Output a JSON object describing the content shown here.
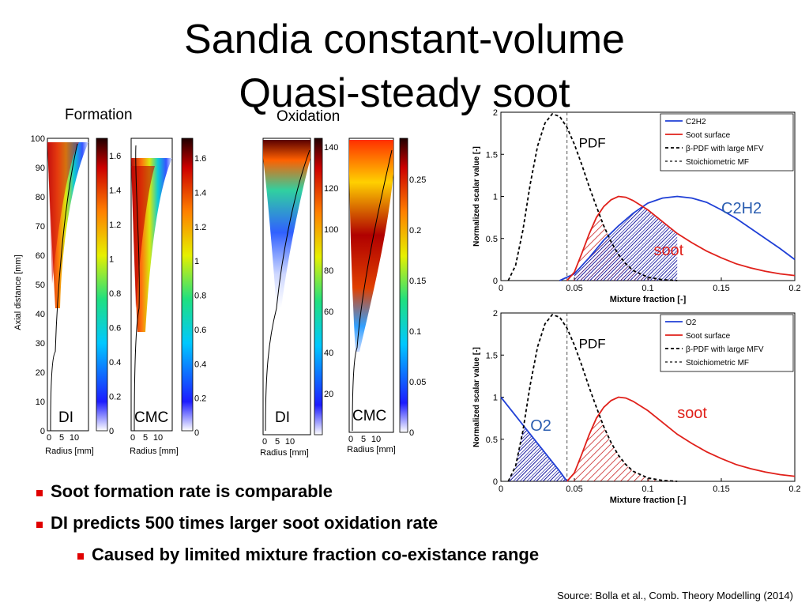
{
  "title": {
    "line1": "Sandia constant-volume",
    "line2": "Quasi-steady soot"
  },
  "section_labels": {
    "formation": "Formation",
    "oxidation": "Oxidation"
  },
  "maps": {
    "ylabel": "Axial distance [mm]",
    "xlabel": "Radius [mm]",
    "y_ticks": [
      "100",
      "90",
      "80",
      "70",
      "60",
      "50",
      "40",
      "30",
      "20",
      "10",
      "0"
    ],
    "x_ticks": [
      "0",
      "5",
      "10"
    ],
    "panels": [
      {
        "label": "DI",
        "cbar_ticks": [
          "1.6",
          "1.4",
          "1.2",
          "1",
          "0.8",
          "0.6",
          "0.4",
          "0.2",
          "0"
        ]
      },
      {
        "label": "CMC",
        "cbar_ticks": [
          "1.6",
          "1.4",
          "1.2",
          "1",
          "0.8",
          "0.6",
          "0.4",
          "0.2",
          "0"
        ]
      },
      {
        "label": "DI",
        "cbar_ticks": [
          "140",
          "120",
          "100",
          "80",
          "60",
          "40",
          "20"
        ]
      },
      {
        "label": "CMC",
        "cbar_ticks": [
          "0.25",
          "0.2",
          "0.15",
          "0.1",
          "0.05",
          "0"
        ]
      }
    ]
  },
  "chart_data": [
    {
      "type": "line",
      "xlabel": "Mixture fraction [-]",
      "ylabel": "Normalized scalar value [-]",
      "xlim": [
        0,
        0.2
      ],
      "ylim": [
        0,
        2
      ],
      "x_ticks": [
        "0",
        "0.05",
        "0.1",
        "0.15",
        "0.2"
      ],
      "y_ticks": [
        "0",
        "0.5",
        "1",
        "1.5",
        "2"
      ],
      "legend_position": "top-right",
      "legend": [
        "C2H2",
        "Soot surface",
        "β-PDF with large MFV",
        "Stoichiometric MF"
      ],
      "annotations": {
        "pdf": "PDF",
        "species": "C2H2",
        "soot": "soot"
      },
      "stoich_mf": 0.045,
      "series": [
        {
          "name": "C2H2",
          "color": "#1f3fd6",
          "x": [
            0.04,
            0.05,
            0.06,
            0.07,
            0.08,
            0.09,
            0.1,
            0.11,
            0.12,
            0.13,
            0.14,
            0.15,
            0.16,
            0.17,
            0.18,
            0.19,
            0.2
          ],
          "y": [
            0,
            0.08,
            0.27,
            0.48,
            0.65,
            0.8,
            0.92,
            0.98,
            1.0,
            0.98,
            0.93,
            0.84,
            0.74,
            0.62,
            0.5,
            0.38,
            0.25
          ]
        },
        {
          "name": "Soot surface",
          "color": "#e0201a",
          "x": [
            0.045,
            0.05,
            0.055,
            0.06,
            0.065,
            0.07,
            0.075,
            0.08,
            0.085,
            0.09,
            0.1,
            0.11,
            0.12,
            0.13,
            0.14,
            0.15,
            0.16,
            0.17,
            0.18,
            0.19,
            0.2
          ],
          "y": [
            0,
            0.1,
            0.32,
            0.55,
            0.75,
            0.88,
            0.96,
            1.0,
            0.99,
            0.95,
            0.84,
            0.7,
            0.56,
            0.45,
            0.35,
            0.27,
            0.2,
            0.15,
            0.11,
            0.08,
            0.06
          ]
        },
        {
          "name": "β-PDF with large MFV",
          "color": "#000000",
          "x": [
            0.005,
            0.01,
            0.015,
            0.02,
            0.025,
            0.03,
            0.035,
            0.04,
            0.045,
            0.05,
            0.055,
            0.06,
            0.065,
            0.07,
            0.075,
            0.08,
            0.085,
            0.09,
            0.1,
            0.11,
            0.12
          ],
          "y": [
            0,
            0.18,
            0.6,
            1.15,
            1.6,
            1.87,
            1.98,
            1.95,
            1.82,
            1.62,
            1.38,
            1.12,
            0.88,
            0.65,
            0.46,
            0.31,
            0.2,
            0.12,
            0.04,
            0.01,
            0
          ]
        }
      ]
    },
    {
      "type": "line",
      "xlabel": "Mixture fraction [-]",
      "ylabel": "Normalized scalar value [-]",
      "xlim": [
        0,
        0.2
      ],
      "ylim": [
        0,
        2
      ],
      "x_ticks": [
        "0",
        "0.05",
        "0.1",
        "0.15",
        "0.2"
      ],
      "y_ticks": [
        "0",
        "0.5",
        "1",
        "1.5",
        "2"
      ],
      "legend_position": "top-right",
      "legend": [
        "O2",
        "Soot surface",
        "β-PDF with large MFV",
        "Stoichiometric MF"
      ],
      "annotations": {
        "pdf": "PDF",
        "species": "O2",
        "soot": "soot"
      },
      "stoich_mf": 0.045,
      "series": [
        {
          "name": "O2",
          "color": "#1f3fd6",
          "x": [
            0,
            0.01,
            0.02,
            0.03,
            0.04,
            0.045
          ],
          "y": [
            1.0,
            0.78,
            0.56,
            0.34,
            0.12,
            0
          ]
        },
        {
          "name": "Soot surface",
          "color": "#e0201a",
          "x": [
            0.045,
            0.05,
            0.055,
            0.06,
            0.065,
            0.07,
            0.075,
            0.08,
            0.085,
            0.09,
            0.1,
            0.11,
            0.12,
            0.13,
            0.14,
            0.15,
            0.16,
            0.17,
            0.18,
            0.19,
            0.2
          ],
          "y": [
            0,
            0.1,
            0.32,
            0.55,
            0.75,
            0.88,
            0.96,
            1.0,
            0.99,
            0.95,
            0.84,
            0.7,
            0.56,
            0.45,
            0.35,
            0.27,
            0.2,
            0.15,
            0.11,
            0.08,
            0.06
          ]
        },
        {
          "name": "β-PDF with large MFV",
          "color": "#000000",
          "x": [
            0.005,
            0.01,
            0.015,
            0.02,
            0.025,
            0.03,
            0.035,
            0.04,
            0.045,
            0.05,
            0.055,
            0.06,
            0.065,
            0.07,
            0.075,
            0.08,
            0.085,
            0.09,
            0.1,
            0.11,
            0.12
          ],
          "y": [
            0,
            0.18,
            0.6,
            1.15,
            1.6,
            1.87,
            1.98,
            1.95,
            1.82,
            1.62,
            1.38,
            1.12,
            0.88,
            0.65,
            0.46,
            0.31,
            0.2,
            0.12,
            0.04,
            0.01,
            0
          ]
        }
      ]
    }
  ],
  "bullets": [
    "Soot formation rate is comparable",
    "DI predicts 500 times larger soot oxidation rate",
    "Caused by limited mixture fraction co-existance range"
  ],
  "source": "Source: Bolla et al., Comb. Theory Modelling (2014)"
}
